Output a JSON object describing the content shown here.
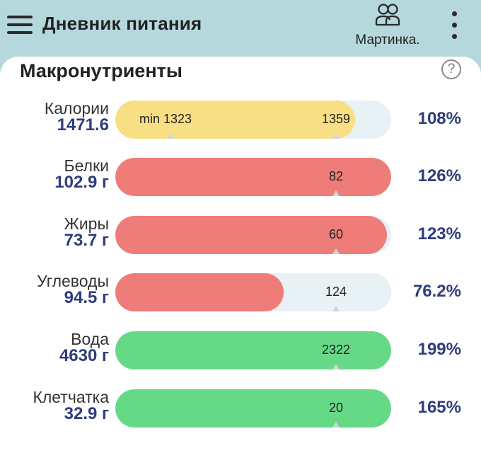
{
  "header": {
    "menu_icon": "hamburger-menu-icon",
    "title": "Дневник питания",
    "profile_icon": "people-icon",
    "profile_name": "Мартинка.",
    "more_icon": "more-vertical-icon"
  },
  "section": {
    "title": "Макронутриенты",
    "help_icon": "question-circle-icon"
  },
  "colors": {
    "header_bg": "#b5d8dd",
    "calories": "#f9df83",
    "over": "#ee7d79",
    "good": "#66d987",
    "track": "#e8f1f4",
    "value_text": "#2e3d7a"
  },
  "nutrients": [
    {
      "name": "Калории",
      "value": "1471.6",
      "target": "1359",
      "min": "min 1323",
      "percent": "108%",
      "fill_fraction": 0.87,
      "target_fraction": 0.8,
      "min_fraction": 0.2,
      "color": "#f9df83"
    },
    {
      "name": "Белки",
      "value": "102.9 г",
      "target": "82",
      "min": "",
      "percent": "126%",
      "fill_fraction": 1.0,
      "target_fraction": 0.8,
      "color": "#ee7d79"
    },
    {
      "name": "Жиры",
      "value": "73.7 г",
      "target": "60",
      "min": "",
      "percent": "123%",
      "fill_fraction": 0.985,
      "target_fraction": 0.8,
      "color": "#ee7d79"
    },
    {
      "name": "Углеводы",
      "value": "94.5 г",
      "target": "124",
      "min": "",
      "percent": "76.2%",
      "fill_fraction": 0.61,
      "target_fraction": 0.8,
      "color": "#ee7d79"
    },
    {
      "name": "Вода",
      "value": "4630 г",
      "target": "2322",
      "min": "",
      "percent": "199%",
      "fill_fraction": 1.0,
      "target_fraction": 0.8,
      "color": "#66d987"
    },
    {
      "name": "Клетчатка",
      "value": "32.9 г",
      "target": "20",
      "min": "",
      "percent": "165%",
      "fill_fraction": 1.0,
      "target_fraction": 0.8,
      "color": "#66d987"
    }
  ]
}
